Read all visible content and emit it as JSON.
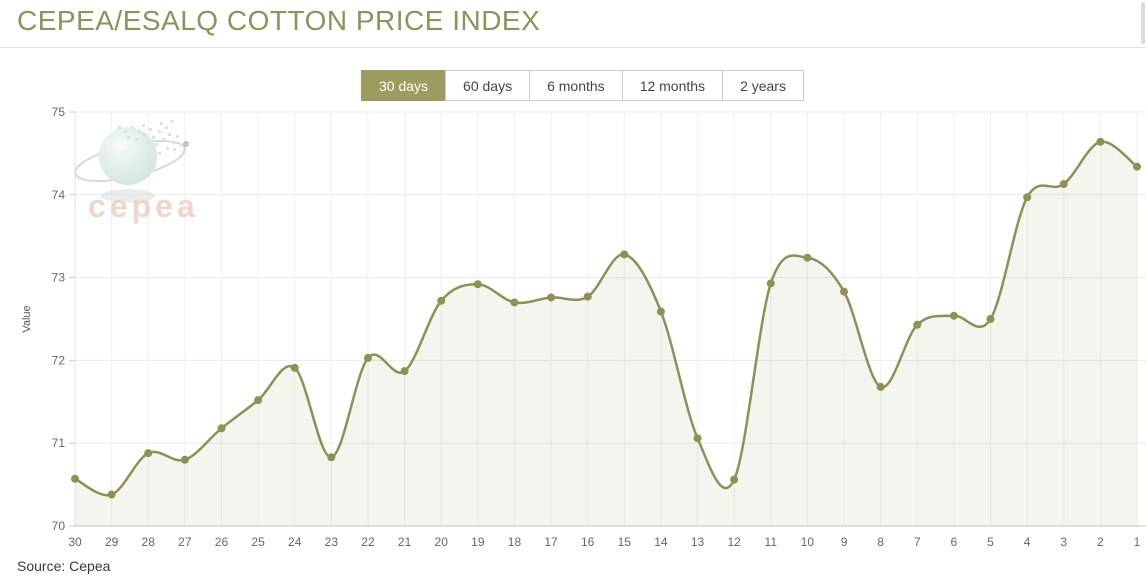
{
  "page": {
    "title": "CEPEA/ESALQ COTTON PRICE INDEX",
    "source": "Source: Cepea",
    "logo_text": "cepea"
  },
  "range_buttons": [
    {
      "label": "30 days",
      "active": true
    },
    {
      "label": "60 days",
      "active": false
    },
    {
      "label": "6 months",
      "active": false
    },
    {
      "label": "12 months",
      "active": false
    },
    {
      "label": "2 years",
      "active": false
    }
  ],
  "colors": {
    "accent": "#90925a",
    "line": "#8e9054",
    "marker": "#8e9054",
    "area_fill": "rgba(154,156,95,0.10)",
    "grid_h": "#e9e9e9",
    "grid_v": "#f0efeb",
    "axis_bottom": "#c4c4c4",
    "axis_left": "#e0e0e0",
    "tick": "#cccccc",
    "tick_text": "#666666",
    "active_button_bg": "#9b9c5f",
    "logo_globe": "#cde3d8",
    "logo_orbit": "#c6c9c8",
    "logo_shadow": "#d9d9d9",
    "logo_text_color": "#ecc9ba"
  },
  "chart_data": {
    "type": "area",
    "title": "CEPEA/ESALQ COTTON PRICE INDEX",
    "xlabel": "",
    "ylabel": "Value",
    "ylim": [
      70,
      75
    ],
    "y_ticks": [
      70,
      71,
      72,
      73,
      74,
      75
    ],
    "grid": true,
    "legend_position": "none",
    "categories": [
      30,
      29,
      28,
      27,
      26,
      25,
      24,
      23,
      22,
      21,
      20,
      19,
      18,
      17,
      16,
      15,
      14,
      13,
      12,
      11,
      10,
      9,
      8,
      7,
      6,
      5,
      4,
      3,
      2,
      1
    ],
    "values": [
      70.57,
      70.38,
      70.88,
      70.8,
      71.18,
      71.52,
      71.91,
      70.83,
      72.03,
      71.87,
      72.72,
      72.92,
      72.7,
      72.76,
      72.77,
      73.28,
      72.59,
      71.06,
      70.56,
      72.93,
      73.24,
      72.83,
      71.68,
      72.43,
      72.54,
      72.5,
      73.97,
      74.13,
      74.64,
      74.34
    ]
  }
}
